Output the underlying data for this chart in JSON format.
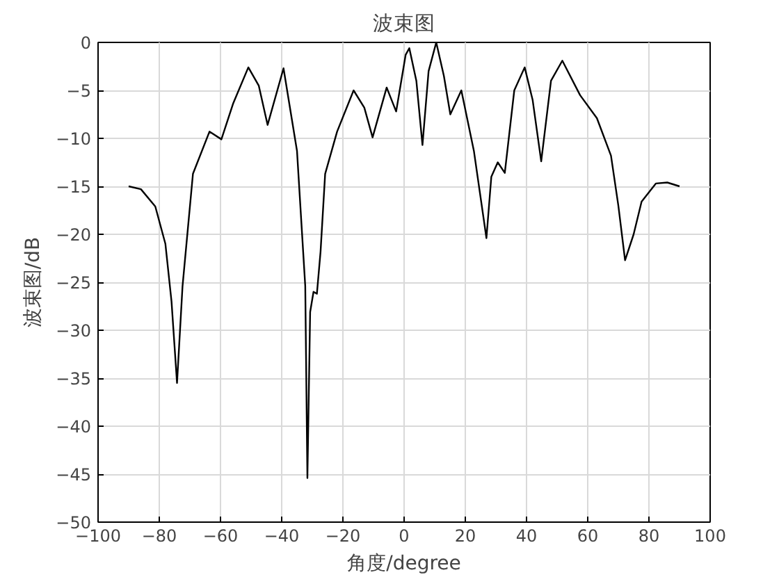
{
  "chart_data": {
    "type": "line",
    "title": "波束图",
    "xlabel": "角度/degree",
    "ylabel": "波束图/dB",
    "x": [
      -90,
      -86,
      -81.3,
      -78,
      -76,
      -74.2,
      -72.4,
      -69,
      -63.6,
      -59.7,
      -55.9,
      -50.9,
      -47.5,
      -44.6,
      -39.4,
      -35,
      -32.3,
      -31.6,
      -30.7,
      -29.6,
      -28.5,
      -27.3,
      -25.8,
      -21.9,
      -16.5,
      -13,
      -10.3,
      -5.7,
      -2.6,
      0.5,
      1.7,
      4,
      6.0,
      8,
      10.5,
      13,
      15.1,
      18.7,
      22.8,
      26.9,
      28.5,
      30.6,
      32.9,
      36,
      39.4,
      42,
      44.8,
      48,
      51.7,
      57.5,
      63,
      67.6,
      70,
      72.2,
      75,
      77.6,
      82.3,
      86,
      90
    ],
    "series": [
      {
        "color": "#000000",
        "values": [
          -15,
          -15.3,
          -17.1,
          -21,
          -27,
          -35.5,
          -25.4,
          -13.7,
          -9.3,
          -10.1,
          -6.4,
          -2.6,
          -4.5,
          -8.6,
          -2.7,
          -11.3,
          -25.4,
          -45.4,
          -28.1,
          -26,
          -26.2,
          -21.8,
          -13.7,
          -9.3,
          -5.0,
          -6.8,
          -9.9,
          -4.7,
          -7.2,
          -1.3,
          -0.6,
          -4,
          -10.7,
          -3,
          0,
          -3.5,
          -7.5,
          -5.0,
          -11.3,
          -20.4,
          -14,
          -12.5,
          -13.6,
          -5,
          -2.6,
          -6,
          -12.4,
          -4,
          -1.9,
          -5.5,
          -7.9,
          -11.8,
          -17,
          -22.7,
          -20,
          -16.6,
          -14.7,
          -14.6,
          -15
        ]
      }
    ],
    "xlim": [
      -100,
      100
    ],
    "ylim": [
      -50,
      0
    ],
    "xticks": [
      -100,
      -80,
      -60,
      -40,
      -20,
      0,
      20,
      40,
      60,
      80,
      100
    ],
    "yticks": [
      -50,
      -45,
      -40,
      -35,
      -30,
      -25,
      -20,
      -15,
      -10,
      -5,
      0
    ],
    "grid": true,
    "line_style": "solid",
    "marker": "none"
  }
}
